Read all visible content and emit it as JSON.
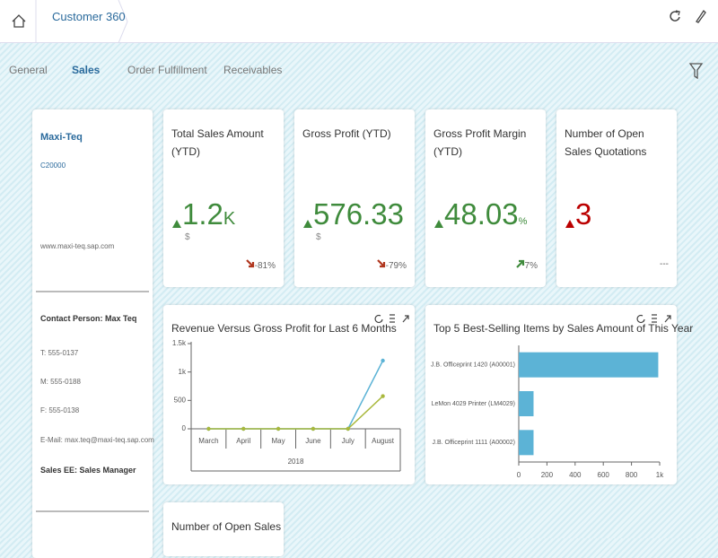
{
  "header": {
    "title": "Customer 360"
  },
  "tabs": [
    "General",
    "Sales",
    "Order Fulfillment",
    "Receivables"
  ],
  "selected_tab": 1,
  "customer": {
    "name": "Maxi-Teq",
    "id": "C20000",
    "website": "www.maxi-teq.sap.com",
    "contact": "Contact Person: Max Teq",
    "phone": "T: 555-0137",
    "mobile": "M: 555-0188",
    "fax": "F: 555-0138",
    "email": "E-Mail: max.teq@maxi-teq.sap.com",
    "sales_employee": "Sales EE: Sales Manager"
  },
  "kpis": [
    {
      "title": "Total Sales Amount (YTD)",
      "value": "1.2",
      "scale": "K",
      "unit": "$",
      "delta": "-81%",
      "trend": "up",
      "delta_dir": "down"
    },
    {
      "title": "Gross Profit (YTD)",
      "value": "576.33",
      "unit": "$",
      "delta": "-79%",
      "trend": "up",
      "delta_dir": "down"
    },
    {
      "title": "Gross Profit Margin (YTD)",
      "value": "48.03",
      "scale": "%",
      "delta": "7%",
      "trend": "up",
      "delta_dir": "up"
    },
    {
      "title": "Number of Open Sales Quotations",
      "value": "3",
      "delta": "---",
      "trend": "alert"
    }
  ],
  "bottom_tile": {
    "title": "Number of Open Sales"
  },
  "chart_data": [
    {
      "type": "line",
      "title": "Revenue Versus Gross Profit for Last 6 Months",
      "categories": [
        "March",
        "April",
        "May",
        "June",
        "July",
        "August"
      ],
      "xlabel": "2018",
      "series": [
        {
          "name": "Revenue",
          "color": "#5cb3d6",
          "values": [
            0,
            0,
            0,
            0,
            0,
            1200
          ]
        },
        {
          "name": "Gross Profit",
          "color": "#a9b83c",
          "values": [
            0,
            0,
            0,
            0,
            0,
            576
          ]
        }
      ],
      "ylim": [
        0,
        1500
      ],
      "yticks": [
        0,
        500,
        {
          "value": 1000,
          "label": "1k"
        },
        {
          "value": 1500,
          "label": "1.5k"
        }
      ]
    },
    {
      "type": "hbar",
      "title": "Top 5 Best-Selling Items by Sales Amount of This Year",
      "categories": [
        "J.B. Officeprint 1420 (A00001)",
        "LeMon 4029 Printer (LM4029)",
        "J.B. Officeprint 1111 (A00002)"
      ],
      "values": [
        990,
        105,
        105
      ],
      "color": "#5cb3d6",
      "xlim": [
        0,
        1000
      ],
      "xticks": [
        0,
        200,
        400,
        600,
        800,
        {
          "value": 1000,
          "label": "1k"
        }
      ]
    }
  ]
}
